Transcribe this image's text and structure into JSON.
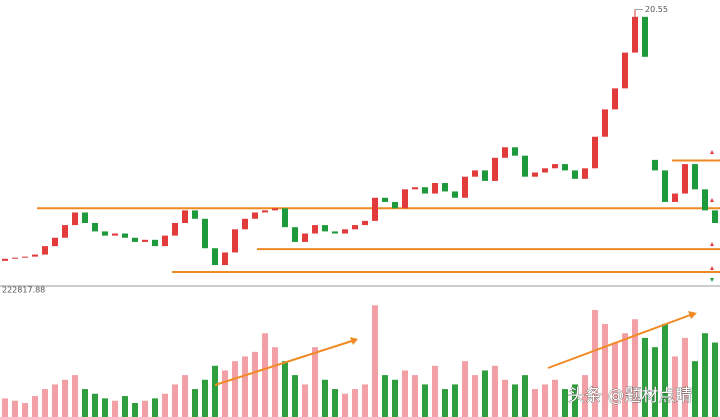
{
  "chart_data": {
    "type": "candlestick",
    "open": [
      8.6,
      8.7,
      8.75,
      8.8,
      8.9,
      9.3,
      9.7,
      10.3,
      10.9,
      10.4,
      10.0,
      9.8,
      9.9,
      9.7,
      9.5,
      9.6,
      9.3,
      9.8,
      10.4,
      11.0,
      10.6,
      9.2,
      8.4,
      9.0,
      10.1,
      10.6,
      10.9,
      11.0,
      11.1,
      10.2,
      9.5,
      9.9,
      10.3,
      10.0,
      9.9,
      10.1,
      10.3,
      10.5,
      11.6,
      11.4,
      11.1,
      12.0,
      12.1,
      11.8,
      12.3,
      11.9,
      11.6,
      12.6,
      12.9,
      12.4,
      13.5,
      14.0,
      13.6,
      12.6,
      12.8,
      13.0,
      13.2,
      12.9,
      12.5,
      13.0,
      14.5,
      15.8,
      16.8,
      18.5,
      20.2,
      13.4,
      12.9,
      11.4,
      11.8,
      13.2,
      12.0,
      11.0
    ],
    "close": [
      8.7,
      8.75,
      8.8,
      8.9,
      9.3,
      9.7,
      10.3,
      10.9,
      10.4,
      10.0,
      9.8,
      9.9,
      9.7,
      9.5,
      9.6,
      9.3,
      9.8,
      10.4,
      11.0,
      10.6,
      9.2,
      8.4,
      9.0,
      10.1,
      10.6,
      10.9,
      11.0,
      11.1,
      10.2,
      9.5,
      9.9,
      10.3,
      10.0,
      9.9,
      10.1,
      10.3,
      10.5,
      11.6,
      11.4,
      11.1,
      12.0,
      12.1,
      11.8,
      12.3,
      11.9,
      11.6,
      12.6,
      12.9,
      12.4,
      13.5,
      14.0,
      13.6,
      12.6,
      12.8,
      13.0,
      13.2,
      12.9,
      12.5,
      13.0,
      14.5,
      15.8,
      16.8,
      18.5,
      20.2,
      18.3,
      12.9,
      11.4,
      11.8,
      13.2,
      12.0,
      11.0,
      10.4
    ],
    "max_price": 20.55,
    "ylim": [
      7.5,
      21
    ],
    "levels": [
      11.1,
      9.16,
      8.07,
      13.37
    ],
    "up_color": "#e23b3b",
    "down_color": "#1e9a3c",
    "level_color": "#f08a24",
    "volume_header": "222817.88",
    "volume": [
      40000,
      35000,
      30000,
      45000,
      60000,
      70000,
      80000,
      90000,
      60000,
      50000,
      40000,
      35000,
      45000,
      30000,
      35000,
      40000,
      50000,
      70000,
      90000,
      60000,
      80000,
      110000,
      100000,
      120000,
      130000,
      140000,
      180000,
      150000,
      120000,
      90000,
      70000,
      150000,
      80000,
      60000,
      50000,
      60000,
      70000,
      240000,
      90000,
      80000,
      100000,
      90000,
      70000,
      110000,
      60000,
      70000,
      120000,
      90000,
      100000,
      110000,
      80000,
      70000,
      90000,
      60000,
      70000,
      80000,
      60000,
      70000,
      90000,
      230000,
      200000,
      160000,
      180000,
      210000,
      170000,
      150000,
      200000,
      130000,
      170000,
      120000,
      180000,
      160000
    ],
    "volume_ylim": [
      0,
      260000
    ],
    "volume_up_color": "#f2a0a6",
    "volume_down_color": "#2e9e3e",
    "watermark": "头条 @题材点睛"
  }
}
